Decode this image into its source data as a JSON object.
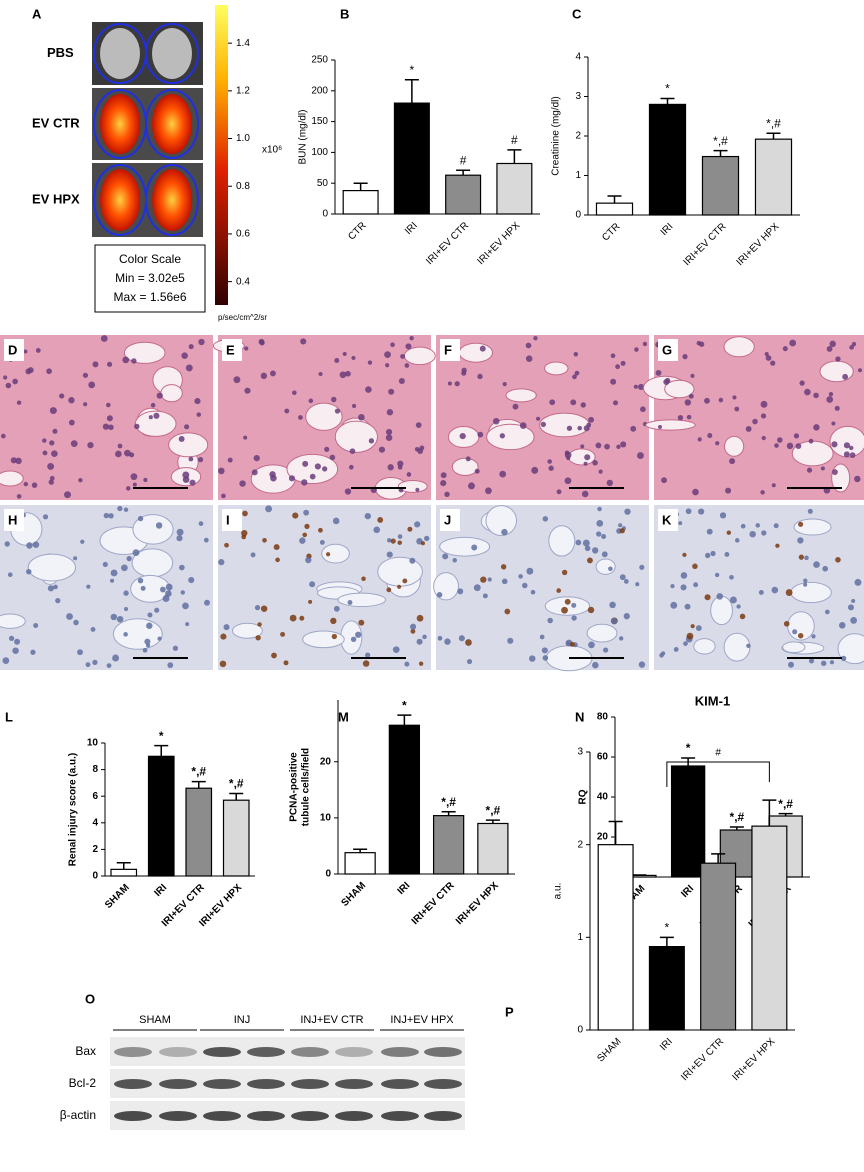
{
  "panel_a": {
    "letter": "A",
    "rows": [
      "PBS",
      "EV CTR",
      "EV HPX"
    ],
    "color_scale": [
      "Color Scale",
      "Min = 3.02e5",
      "Max = 1.56e6"
    ],
    "colorbar": {
      "ylim": [
        0.302,
        1.56
      ],
      "yticks": [
        0.4,
        0.6,
        0.8,
        {
          "value": 1,
          "label": "1.0"
        },
        1.2,
        1.4
      ],
      "multiplier": "x10⁶",
      "unit": "p/sec/cm^2/sr"
    }
  },
  "histology": {
    "letters": [
      "D",
      "E",
      "F",
      "G",
      "H",
      "I",
      "J",
      "K"
    ]
  },
  "blot": {
    "letter": "O",
    "groups": [
      "SHAM",
      "INJ",
      "INJ+EV CTR",
      "INJ+EV HPX"
    ],
    "rows": [
      "Bax",
      "Bcl-2",
      "β-actin"
    ]
  },
  "chart_data": [
    {
      "type": "bar",
      "panel": "B",
      "ylabel": "BUN (mg/dl)",
      "categories": [
        "CTR",
        "IRI",
        "IRI+EV CTR",
        "IRI+EV HPX"
      ],
      "values": [
        38,
        180,
        63,
        82
      ],
      "errors": [
        12,
        38,
        8,
        22
      ],
      "annotations": [
        null,
        "*",
        "#",
        "#"
      ],
      "colors": [
        "#ffffff",
        "#000000",
        "#8c8c8c",
        "#d9d9d9"
      ],
      "ylim": [
        0,
        250
      ],
      "yticks": [
        0,
        50,
        100,
        150,
        200,
        250
      ]
    },
    {
      "type": "bar",
      "panel": "C",
      "ylabel": "Creatinine (mg/dl)",
      "categories": [
        "CTR",
        "IRI",
        "IRI+EV CTR",
        "IRI+EV HPX"
      ],
      "values": [
        0.3,
        2.8,
        1.48,
        1.92
      ],
      "errors": [
        0.18,
        0.15,
        0.15,
        0.15
      ],
      "annotations": [
        null,
        "*",
        "*,#",
        "*,#"
      ],
      "colors": [
        "#ffffff",
        "#000000",
        "#8c8c8c",
        "#d9d9d9"
      ],
      "ylim": [
        0,
        4
      ],
      "yticks": [
        0,
        1,
        2,
        3,
        4
      ]
    },
    {
      "type": "bar",
      "panel": "L",
      "ylabel": "Renal injury score (a.u.)",
      "categories": [
        "SHAM",
        "IRI",
        "IRI+EV CTR",
        "IRI+EV HPX"
      ],
      "values": [
        0.5,
        9.0,
        6.6,
        5.7
      ],
      "errors": [
        0.5,
        0.8,
        0.5,
        0.5
      ],
      "annotations": [
        null,
        "*",
        "*,#",
        "*,#"
      ],
      "colors": [
        "#ffffff",
        "#000000",
        "#8c8c8c",
        "#d9d9d9"
      ],
      "ylim": [
        0,
        10
      ],
      "yticks": [
        0,
        2,
        4,
        6,
        8,
        10
      ]
    },
    {
      "type": "bar",
      "panel": "M",
      "ylabel": [
        "PCNA-positive",
        "tubule cells/field"
      ],
      "categories": [
        "SHAM",
        "IRI",
        "IRI+EV CTR",
        "IRI+EV HPX"
      ],
      "values": [
        3.8,
        26.5,
        10.4,
        9
      ],
      "errors": [
        0.6,
        1.8,
        0.7,
        0.6
      ],
      "annotations": [
        null,
        "*",
        "*,#",
        "*,#"
      ],
      "colors": [
        "#ffffff",
        "#000000",
        "#8c8c8c",
        "#d9d9d9"
      ],
      "ylim": [
        0,
        31
      ],
      "yticks": [
        0,
        10,
        20
      ]
    },
    {
      "type": "bar",
      "panel": "N",
      "title": "KIM-1",
      "ylabel": "RQ",
      "categories": [
        "SHAM",
        "IRI",
        "IRI+EV CTR",
        "IRI+EV HPX"
      ],
      "values": [
        0.8,
        55.5,
        23.5,
        30.5
      ],
      "errors": [
        0.2,
        4,
        1.5,
        1.2
      ],
      "annotations": [
        null,
        "*",
        "*,#",
        "*,#"
      ],
      "colors": [
        "#ffffff",
        "#000000",
        "#8c8c8c",
        "#d9d9d9"
      ],
      "ylim": [
        0,
        80
      ],
      "yticks": [
        0,
        20,
        40,
        60,
        80
      ]
    },
    {
      "type": "bar",
      "panel": "P",
      "ylabel": "a.u.",
      "categories": [
        "SHAM",
        "IRI",
        "IRI+EV CTR",
        "IRI+EV HPX"
      ],
      "values": [
        2.0,
        0.9,
        1.8,
        2.2
      ],
      "errors": [
        0.25,
        0.1,
        0.1,
        0.28
      ],
      "annotations": [
        null,
        "*",
        null,
        null
      ],
      "bracket_label": "#",
      "colors": [
        "#ffffff",
        "#000000",
        "#8c8c8c",
        "#d9d9d9"
      ],
      "ylim": [
        0,
        3
      ],
      "yticks": [
        0,
        1,
        2,
        3
      ]
    }
  ]
}
